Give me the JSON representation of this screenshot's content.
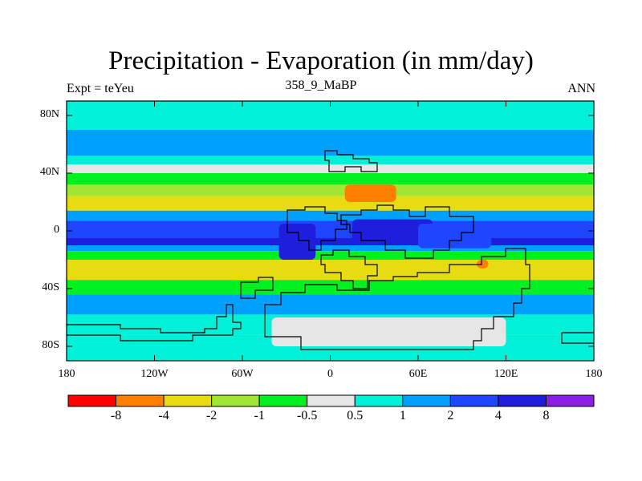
{
  "title": "Precipitation - Evaporation (in mm/day)",
  "subtitle": "358_9_MaBP",
  "left_label": "Expt = teYeu",
  "right_label": "ANN",
  "y_ticks": [
    {
      "label": "80N",
      "lat": 80
    },
    {
      "label": "40N",
      "lat": 40
    },
    {
      "label": "0",
      "lat": 0
    },
    {
      "label": "40S",
      "lat": -40
    },
    {
      "label": "80S",
      "lat": -80
    }
  ],
  "x_ticks": [
    {
      "label": "180",
      "lon": -180
    },
    {
      "label": "120W",
      "lon": -120
    },
    {
      "label": "60W",
      "lon": -60
    },
    {
      "label": "0",
      "lon": 0
    },
    {
      "label": "60E",
      "lon": 60
    },
    {
      "label": "120E",
      "lon": 120
    },
    {
      "label": "180",
      "lon": 180
    }
  ],
  "colorbar": {
    "colors": [
      "#ff0000",
      "#ff8000",
      "#e6dc10",
      "#a0e632",
      "#00f020",
      "#e6e6e6",
      "#00f0d8",
      "#00a0ff",
      "#1e46ff",
      "#1e1edc",
      "#8c1ee6"
    ],
    "labels": [
      "-8",
      "-4",
      "-2",
      "-1",
      "-0.5",
      "0.5",
      "1",
      "2",
      "4",
      "8"
    ]
  },
  "chart_data": {
    "type": "heatmap",
    "title": "Precipitation - Evaporation (in mm/day)",
    "subtitle": "358_9_MaBP",
    "units": "mm/day",
    "xlim": [
      -180,
      180
    ],
    "ylim": [
      -90,
      90
    ],
    "levels": [
      -8,
      -4,
      -2,
      -1,
      -0.5,
      0.5,
      1,
      2,
      4,
      8
    ],
    "zonal_bands": [
      {
        "lat": [
          70,
          90
        ],
        "value": 0.7
      },
      {
        "lat": [
          52,
          70
        ],
        "value": 1.5
      },
      {
        "lat": [
          46,
          52
        ],
        "value": 0.7
      },
      {
        "lat": [
          40,
          46
        ],
        "value": 0
      },
      {
        "lat": [
          32,
          40
        ],
        "value": -0.7
      },
      {
        "lat": [
          24,
          32
        ],
        "value": -1.5
      },
      {
        "lat": [
          14,
          24
        ],
        "value": -2.5
      },
      {
        "lat": [
          7,
          14
        ],
        "value": 1.5
      },
      {
        "lat": [
          -5,
          7
        ],
        "value": 2.5
      },
      {
        "lat": [
          -10,
          -5
        ],
        "value": 5
      },
      {
        "lat": [
          -14,
          -10
        ],
        "value": 1.5
      },
      {
        "lat": [
          -20,
          -14
        ],
        "value": -0.7
      },
      {
        "lat": [
          -34,
          -20
        ],
        "value": -2.5
      },
      {
        "lat": [
          -44,
          -34
        ],
        "value": -0.7
      },
      {
        "lat": [
          -58,
          -44
        ],
        "value": 1.5
      },
      {
        "lat": [
          -72,
          -58
        ],
        "value": 0.7
      },
      {
        "lat": [
          -90,
          -72
        ],
        "value": 0.7
      }
    ],
    "regions": [
      {
        "name": "north-africa-arabia",
        "lon": [
          10,
          45
        ],
        "lat": [
          20,
          32
        ],
        "value": -5
      },
      {
        "name": "indian-subcontinent",
        "lon": [
          100,
          108
        ],
        "lat": [
          -26,
          -20
        ],
        "value": -5
      },
      {
        "name": "equatorial-americas",
        "lon": [
          -35,
          -10
        ],
        "lat": [
          -20,
          5
        ],
        "value": 5
      },
      {
        "name": "equatorial-africa",
        "lon": [
          15,
          70
        ],
        "lat": [
          -10,
          8
        ],
        "value": 5
      },
      {
        "name": "equatorial-asia",
        "lon": [
          60,
          110
        ],
        "lat": [
          -12,
          5
        ],
        "value": 3
      },
      {
        "name": "polar-south-land",
        "lon": [
          -40,
          120
        ],
        "lat": [
          -80,
          -60
        ],
        "value": 0
      }
    ]
  }
}
